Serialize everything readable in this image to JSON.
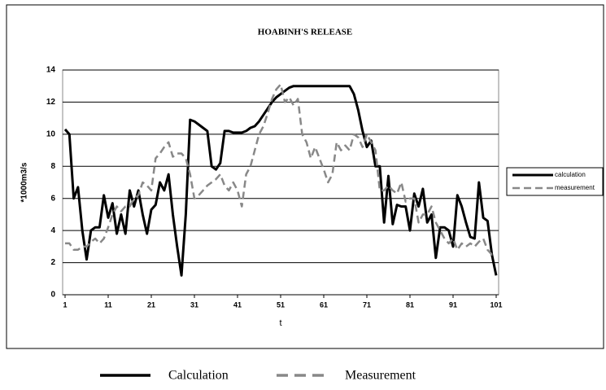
{
  "chart_data": {
    "type": "line",
    "title": "HOABINH'S RELEASE",
    "x_label": "t",
    "y_label": "*1000m3/s",
    "x": [
      1,
      2,
      3,
      4,
      5,
      6,
      7,
      8,
      9,
      10,
      11,
      12,
      13,
      14,
      15,
      16,
      17,
      18,
      19,
      20,
      21,
      22,
      23,
      24,
      25,
      26,
      27,
      28,
      29,
      30,
      31,
      32,
      33,
      34,
      35,
      36,
      37,
      38,
      39,
      40,
      41,
      42,
      43,
      44,
      45,
      46,
      47,
      48,
      49,
      50,
      51,
      52,
      53,
      54,
      55,
      56,
      57,
      58,
      59,
      60,
      61,
      62,
      63,
      64,
      65,
      66,
      67,
      68,
      69,
      70,
      71,
      72,
      73,
      74,
      75,
      76,
      77,
      78,
      79,
      80,
      81,
      82,
      83,
      84,
      85,
      86,
      87,
      88,
      89,
      90,
      91,
      92,
      93,
      94,
      95,
      96,
      97,
      98,
      99,
      100,
      101
    ],
    "series": [
      {
        "name": "calculation",
        "color": "#000000",
        "dash": false,
        "values": [
          10.3,
          10,
          6,
          6.7,
          4,
          2.2,
          4,
          4.2,
          4.2,
          6.2,
          4.8,
          5.7,
          3.8,
          5,
          3.8,
          6.5,
          5.5,
          6.5,
          5,
          3.8,
          5.3,
          5.6,
          7,
          6.5,
          7.5,
          5,
          3,
          1.2,
          5,
          10.9,
          10.8,
          10.6,
          10.4,
          10.2,
          8,
          7.8,
          8.2,
          10.2,
          10.2,
          10.1,
          10.1,
          10.1,
          10.2,
          10.4,
          10.5,
          10.8,
          11.2,
          11.6,
          12,
          12.3,
          12.5,
          12.7,
          12.9,
          13,
          13,
          13,
          13,
          13,
          13,
          13,
          13,
          13,
          13,
          13,
          13,
          13,
          13,
          12.5,
          11.5,
          10.2,
          9.2,
          9.6,
          8,
          8,
          4.5,
          7.4,
          4.4,
          5.6,
          5.5,
          5.5,
          4,
          6.3,
          5.5,
          6.6,
          4.5,
          5,
          2.3,
          4.2,
          4.2,
          4,
          3,
          6.2,
          5.5,
          4.5,
          3.6,
          3.5,
          7,
          4.8,
          4.6,
          2.5,
          1.2
        ]
      },
      {
        "name": "measurement",
        "color": "#888888",
        "dash": true,
        "values": [
          3.2,
          3.2,
          2.8,
          2.8,
          3,
          3,
          3.3,
          3.5,
          3.2,
          3.5,
          4.2,
          5,
          5.5,
          5.2,
          5.5,
          5.5,
          6,
          6.2,
          7,
          6.8,
          6.5,
          8.5,
          8.8,
          9.2,
          9.5,
          8.6,
          8.8,
          8.8,
          8.5,
          7.5,
          6,
          6.2,
          6.5,
          6.8,
          7,
          7.2,
          7.5,
          6.8,
          6.5,
          7,
          6.5,
          5.5,
          7.5,
          8,
          9,
          10,
          10.5,
          11.3,
          12.2,
          12.8,
          13.1,
          12,
          12.3,
          11.8,
          12.2,
          10,
          9.5,
          8.5,
          9.2,
          8.5,
          7.8,
          7,
          7.5,
          9.5,
          9,
          9.3,
          9,
          10,
          9.8,
          9.2,
          10,
          9.5,
          9,
          6.5,
          6.5,
          6.8,
          6.5,
          6.3,
          7,
          5.8,
          6,
          6,
          4.5,
          5,
          5,
          5.5,
          4.5,
          4,
          3.5,
          3.2,
          3.5,
          2.8,
          3.2,
          3,
          3.2,
          3,
          3.3,
          3.5,
          2.8,
          2.5,
          2.5
        ]
      }
    ],
    "xlim": [
      1,
      101
    ],
    "xticks": [
      1,
      11,
      21,
      31,
      41,
      51,
      61,
      71,
      81,
      91,
      101
    ],
    "ylim": [
      0,
      14
    ],
    "yticks": [
      0,
      2,
      4,
      6,
      8,
      10,
      12,
      14
    ],
    "grid": true,
    "legend": "right",
    "bottom_legend": [
      "Calculation",
      "Measurement"
    ]
  }
}
